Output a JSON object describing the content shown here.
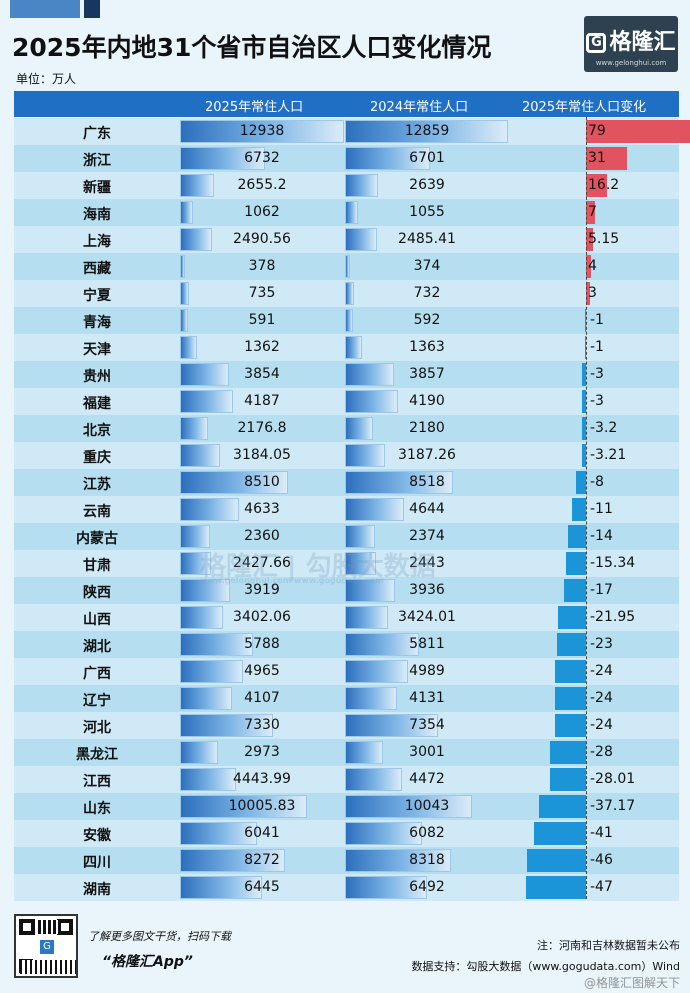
{
  "title": "2025年内地31个省市自治区人口变化情况",
  "unit_label": "单位：万人",
  "brand": {
    "name": "格隆汇",
    "url": "www.gelonghui.com"
  },
  "watermark": {
    "text": "格隆汇 | 勾股大数据",
    "url": "www.gelonghui.com   www.gogudata.com"
  },
  "colors": {
    "header": "#1f6fc4",
    "positive": "#e0535f",
    "negative": "#1b95d8",
    "row_a": "#cfeaf6",
    "row_b": "#b5dff1"
  },
  "chart_data": {
    "type": "table",
    "columns": [
      "",
      "2025年常住人口",
      "2024年常住人口",
      "2025年常住人口变化"
    ],
    "rows": [
      {
        "province": "广东",
        "pop2025": "12938",
        "pop2024": "12859",
        "change": "79"
      },
      {
        "province": "浙江",
        "pop2025": "6732",
        "pop2024": "6701",
        "change": "31"
      },
      {
        "province": "新疆",
        "pop2025": "2655.2",
        "pop2024": "2639",
        "change": "16.2"
      },
      {
        "province": "海南",
        "pop2025": "1062",
        "pop2024": "1055",
        "change": "7"
      },
      {
        "province": "上海",
        "pop2025": "2490.56",
        "pop2024": "2485.41",
        "change": "5.15"
      },
      {
        "province": "西藏",
        "pop2025": "378",
        "pop2024": "374",
        "change": "4"
      },
      {
        "province": "宁夏",
        "pop2025": "735",
        "pop2024": "732",
        "change": "3"
      },
      {
        "province": "青海",
        "pop2025": "591",
        "pop2024": "592",
        "change": "-1"
      },
      {
        "province": "天津",
        "pop2025": "1362",
        "pop2024": "1363",
        "change": "-1"
      },
      {
        "province": "贵州",
        "pop2025": "3854",
        "pop2024": "3857",
        "change": "-3"
      },
      {
        "province": "福建",
        "pop2025": "4187",
        "pop2024": "4190",
        "change": "-3"
      },
      {
        "province": "北京",
        "pop2025": "2176.8",
        "pop2024": "2180",
        "change": "-3.2"
      },
      {
        "province": "重庆",
        "pop2025": "3184.05",
        "pop2024": "3187.26",
        "change": "-3.21"
      },
      {
        "province": "江苏",
        "pop2025": "8510",
        "pop2024": "8518",
        "change": "-8"
      },
      {
        "province": "云南",
        "pop2025": "4633",
        "pop2024": "4644",
        "change": "-11"
      },
      {
        "province": "内蒙古",
        "pop2025": "2360",
        "pop2024": "2374",
        "change": "-14"
      },
      {
        "province": "甘肃",
        "pop2025": "2427.66",
        "pop2024": "2443",
        "change": "-15.34"
      },
      {
        "province": "陕西",
        "pop2025": "3919",
        "pop2024": "3936",
        "change": "-17"
      },
      {
        "province": "山西",
        "pop2025": "3402.06",
        "pop2024": "3424.01",
        "change": "-21.95"
      },
      {
        "province": "湖北",
        "pop2025": "5788",
        "pop2024": "5811",
        "change": "-23"
      },
      {
        "province": "广西",
        "pop2025": "4965",
        "pop2024": "4989",
        "change": "-24"
      },
      {
        "province": "辽宁",
        "pop2025": "4107",
        "pop2024": "4131",
        "change": "-24"
      },
      {
        "province": "河北",
        "pop2025": "7330",
        "pop2024": "7354",
        "change": "-24"
      },
      {
        "province": "黑龙江",
        "pop2025": "2973",
        "pop2024": "3001",
        "change": "-28"
      },
      {
        "province": "江西",
        "pop2025": "4443.99",
        "pop2024": "4472",
        "change": "-28.01"
      },
      {
        "province": "山东",
        "pop2025": "10005.83",
        "pop2024": "10043",
        "change": "-37.17"
      },
      {
        "province": "安徽",
        "pop2025": "6041",
        "pop2024": "6082",
        "change": "-41"
      },
      {
        "province": "四川",
        "pop2025": "8272",
        "pop2024": "8318",
        "change": "-46"
      },
      {
        "province": "湖南",
        "pop2025": "6445",
        "pop2024": "6492",
        "change": "-47"
      }
    ]
  },
  "footer": {
    "promo": "了解更多图文干货，扫码下载",
    "app_name": "“格隆汇App”",
    "note": "注：河南和吉林数据暂未公布",
    "source": "数据支持：勾股大数据（www.gogudata.com）Wind",
    "weibo": "@格隆汇图解天下"
  }
}
